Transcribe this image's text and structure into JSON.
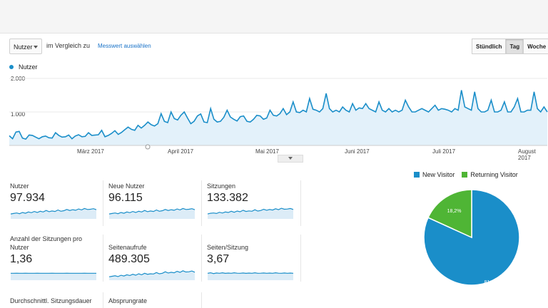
{
  "toolbar": {
    "metric_select": "Nutzer",
    "compare_text": "im Vergleich zu",
    "pick_metric": "Messwert auswählen",
    "time_buttons": [
      "Stündlich",
      "Tag",
      "Woche"
    ],
    "active_time": "Tag"
  },
  "chart_data": [
    {
      "type": "area",
      "series": [
        {
          "name": "Nutzer",
          "values": [
            290,
            200,
            400,
            420,
            220,
            190,
            310,
            300,
            250,
            200,
            260,
            280,
            230,
            220,
            380,
            300,
            250,
            260,
            310,
            200,
            280,
            320,
            260,
            270,
            380,
            300,
            310,
            320,
            450,
            260,
            300,
            360,
            440,
            330,
            390,
            470,
            550,
            480,
            450,
            600,
            520,
            600,
            700,
            620,
            580,
            650,
            950,
            720,
            680,
            1000,
            800,
            760,
            900,
            1000,
            820,
            650,
            720,
            880,
            940,
            700,
            680,
            1100,
            780,
            700,
            720,
            840,
            1050,
            850,
            780,
            730,
            860,
            880,
            720,
            700,
            780,
            900,
            880,
            780,
            820,
            1050,
            900,
            880,
            950,
            1100,
            920,
            1000,
            1300,
            1000,
            980,
            1050,
            1000,
            1400,
            1080,
            1050,
            1000,
            1100,
            1550,
            1100,
            1000,
            1050,
            1000,
            1150,
            1050,
            1000,
            1250,
            1050,
            1120,
            1100,
            1250,
            1100,
            1050,
            1000,
            1300,
            1050,
            1000,
            1100,
            1000,
            1050,
            1000,
            1050,
            1350,
            1150,
            1000,
            1000,
            1050,
            1100,
            1050,
            1000,
            1100,
            1200,
            1050,
            1100,
            1080,
            1050,
            1000,
            1100,
            1050,
            1650,
            1150,
            1100,
            1050,
            1600,
            1100,
            1000,
            1000,
            1050,
            1350,
            1000,
            1000,
            1050,
            1300,
            1000,
            1000,
            1150,
            1400,
            1000,
            1000,
            1050,
            1050,
            1600,
            1100,
            1000,
            1150,
            1000
          ]
        }
      ],
      "y_ticks": [
        "2.000",
        "1.000"
      ],
      "ylim": [
        0,
        2000
      ],
      "x_ticks": [
        "März 2017",
        "April 2017",
        "Mai 2017",
        "Juni 2017",
        "Juli 2017",
        "August 2017"
      ],
      "color": "#1a8ec9"
    },
    {
      "type": "pie",
      "categories": [
        "New Visitor",
        "Returning Visitor"
      ],
      "values": [
        81.8,
        18.2
      ],
      "labels": [
        "81,8%",
        "18,2%"
      ],
      "colors": [
        "#1a8ec9",
        "#4fb535"
      ]
    }
  ],
  "metrics": [
    {
      "label": "Nutzer",
      "value": "97.934",
      "spark": [
        0.35,
        0.4,
        0.45,
        0.38,
        0.5,
        0.42,
        0.55,
        0.48,
        0.6,
        0.5,
        0.62,
        0.55,
        0.7,
        0.58,
        0.65,
        0.6,
        0.75,
        0.62,
        0.68,
        0.8,
        0.7,
        0.78,
        0.72,
        0.85,
        0.76,
        0.9,
        0.8,
        0.82,
        0.88,
        0.78
      ]
    },
    {
      "label": "Neue Nutzer",
      "value": "96.115",
      "spark": [
        0.35,
        0.4,
        0.45,
        0.38,
        0.5,
        0.42,
        0.55,
        0.48,
        0.6,
        0.5,
        0.62,
        0.55,
        0.7,
        0.58,
        0.65,
        0.6,
        0.75,
        0.62,
        0.68,
        0.8,
        0.7,
        0.78,
        0.72,
        0.85,
        0.76,
        0.9,
        0.8,
        0.82,
        0.88,
        0.78
      ]
    },
    {
      "label": "Sitzungen",
      "value": "133.382",
      "spark": [
        0.35,
        0.42,
        0.45,
        0.4,
        0.52,
        0.44,
        0.55,
        0.5,
        0.62,
        0.52,
        0.64,
        0.57,
        0.72,
        0.6,
        0.66,
        0.62,
        0.77,
        0.64,
        0.7,
        0.82,
        0.72,
        0.8,
        0.74,
        0.87,
        0.78,
        0.92,
        0.82,
        0.84,
        0.9,
        0.8
      ]
    },
    {
      "label": "Anzahl der Sitzungen pro Nutzer",
      "value": "1,36",
      "spark": [
        0.55,
        0.55,
        0.56,
        0.55,
        0.55,
        0.56,
        0.55,
        0.55,
        0.55,
        0.56,
        0.55,
        0.55,
        0.55,
        0.55,
        0.56,
        0.55,
        0.55,
        0.55,
        0.55,
        0.56,
        0.55,
        0.55,
        0.55,
        0.55,
        0.55,
        0.56,
        0.55,
        0.55,
        0.55,
        0.55
      ]
    },
    {
      "label": "Seitenaufrufe",
      "value": "489.305",
      "spark": [
        0.2,
        0.25,
        0.3,
        0.22,
        0.35,
        0.28,
        0.4,
        0.33,
        0.45,
        0.36,
        0.5,
        0.4,
        0.55,
        0.45,
        0.5,
        0.48,
        0.62,
        0.5,
        0.55,
        0.7,
        0.58,
        0.65,
        0.6,
        0.75,
        0.64,
        0.8,
        0.68,
        0.7,
        0.78,
        0.66
      ]
    },
    {
      "label": "Seiten/Sitzung",
      "value": "3,67",
      "spark": [
        0.55,
        0.6,
        0.52,
        0.58,
        0.55,
        0.6,
        0.54,
        0.57,
        0.55,
        0.6,
        0.56,
        0.55,
        0.58,
        0.54,
        0.57,
        0.55,
        0.6,
        0.55,
        0.56,
        0.58,
        0.55,
        0.57,
        0.55,
        0.6,
        0.56,
        0.55,
        0.58,
        0.55,
        0.57,
        0.55
      ]
    },
    {
      "label": "Durchschnittl. Sitzungsdauer",
      "value": ""
    },
    {
      "label": "Absprungrate",
      "value": ""
    }
  ]
}
